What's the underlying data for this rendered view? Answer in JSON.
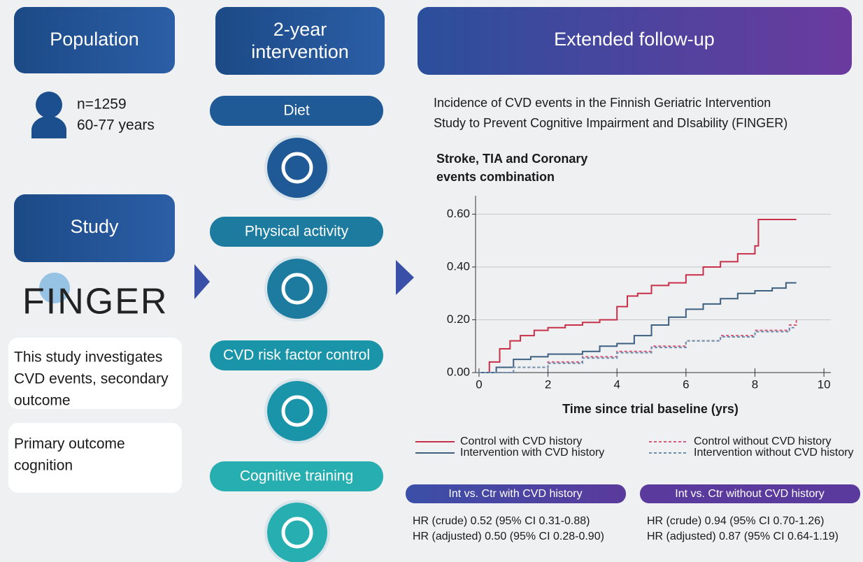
{
  "population": {
    "header": "Population",
    "count": "n=1259",
    "ages": "60-77 years"
  },
  "study": {
    "header": "Study",
    "logo": "FINGER",
    "notes": [
      [
        "This study investigates",
        "CVD events, secondary",
        "outcome"
      ],
      [
        "Primary outcome",
        "cognition"
      ]
    ]
  },
  "intervention": {
    "header": [
      "2-year",
      "intervention"
    ],
    "components": [
      "Diet",
      "Physical  activity",
      "CVD risk factor control",
      "Cognitive training"
    ]
  },
  "followup": {
    "header": "Extended follow-up",
    "description": [
      "Incidence of CVD events in the Finnish Geriatric Intervention",
      "Study to Prevent Cognitive Impairment and DIsability (FINGER)"
    ]
  },
  "chart": {
    "type": "line",
    "title": [
      "Stroke, TIA and Coronary",
      "events combination"
    ],
    "x_label": "Time since trial baseline (yrs)",
    "xlim": [
      -0.1,
      10.2
    ],
    "ylim": [
      0,
      0.67
    ],
    "xticks": [
      0,
      2,
      4,
      6,
      8,
      10
    ],
    "yticks": [
      {
        "value": 0,
        "label": "0.00"
      },
      {
        "value": 0.2,
        "label": "0.20"
      },
      {
        "value": 0.4,
        "label": "0.40"
      },
      {
        "value": 0.6,
        "label": "0.60"
      }
    ],
    "grid": true,
    "series": [
      {
        "name": "Control with CVD history",
        "color": "#c8304a",
        "dashed": false,
        "x": [
          0,
          0.3,
          0.6,
          0.9,
          1.2,
          1.6,
          2,
          2.5,
          3,
          3.5,
          4,
          4.3,
          4.6,
          5,
          5.5,
          6,
          6.5,
          7,
          7.5,
          8,
          8.1,
          9.2
        ],
        "values": [
          0,
          0.04,
          0.09,
          0.12,
          0.14,
          0.16,
          0.17,
          0.18,
          0.19,
          0.2,
          0.25,
          0.29,
          0.3,
          0.33,
          0.34,
          0.37,
          0.4,
          0.42,
          0.45,
          0.48,
          0.58,
          0.58
        ]
      },
      {
        "name": "Intervention with CVD history",
        "color": "#3d5f80",
        "dashed": false,
        "x": [
          0,
          0.5,
          1,
          1.5,
          2,
          3,
          3.5,
          4,
          4.5,
          5,
          5.5,
          6,
          6.5,
          7,
          7.5,
          8,
          8.5,
          8.9,
          9.2
        ],
        "values": [
          0,
          0.02,
          0.05,
          0.06,
          0.07,
          0.08,
          0.1,
          0.11,
          0.14,
          0.18,
          0.21,
          0.24,
          0.26,
          0.28,
          0.3,
          0.31,
          0.32,
          0.34,
          0.34
        ]
      },
      {
        "name": "Control without CVD history",
        "color": "#d85a7a",
        "dashed": true,
        "x": [
          0,
          1,
          2,
          3,
          4,
          5,
          6,
          7,
          8,
          9,
          9.2
        ],
        "values": [
          0,
          0.02,
          0.04,
          0.06,
          0.08,
          0.1,
          0.12,
          0.14,
          0.16,
          0.18,
          0.2
        ]
      },
      {
        "name": "Intervention without CVD history",
        "color": "#6a8fb0",
        "dashed": true,
        "x": [
          0,
          1,
          2,
          3,
          4,
          5,
          6,
          7,
          8,
          9,
          9.2
        ],
        "values": [
          0,
          0.02,
          0.035,
          0.055,
          0.075,
          0.095,
          0.12,
          0.135,
          0.155,
          0.17,
          0.17
        ]
      }
    ]
  },
  "results": [
    {
      "title": "Int vs. Ctr with CVD history",
      "lines": [
        "HR (crude) 0.52 (95% CI 0.31-0.88)",
        "HR (adjusted) 0.50 (95% CI 0.28-0.90)"
      ]
    },
    {
      "title": "Int vs. Ctr without CVD history",
      "lines": [
        "HR (crude) 0.94 (95% CI 0.70-1.26)",
        "HR (adjusted) 0.87 (95% CI 0.64-1.19)"
      ]
    }
  ]
}
